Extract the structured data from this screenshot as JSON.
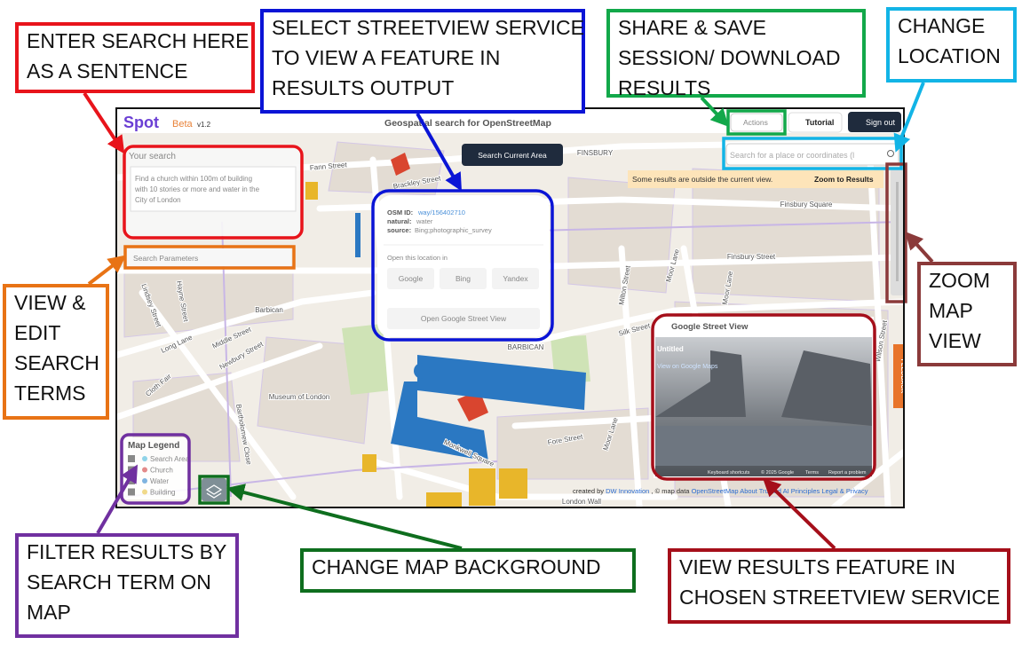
{
  "callouts": [
    {
      "lines": [
        "ENTER SEARCH HERE",
        "AS A SENTENCE"
      ]
    },
    {
      "lines": [
        "SELECT STREETVIEW SERVICE",
        "TO VIEW A FEATURE IN",
        "RESULTS OUTPUT"
      ]
    },
    {
      "lines": [
        "SHARE & SAVE",
        "SESSION/ DOWNLOAD",
        "RESULTS"
      ]
    },
    {
      "lines": [
        "CHANGE",
        "LOCATION"
      ]
    },
    {
      "lines": [
        "VIEW &",
        "EDIT",
        "SEARCH",
        "TERMS"
      ]
    },
    {
      "lines": [
        "ZOOM",
        "MAP",
        "VIEW"
      ]
    },
    {
      "lines": [
        "FILTER RESULTS BY",
        "SEARCH TERM ON",
        "MAP"
      ]
    },
    {
      "lines": [
        "CHANGE MAP BACKGROUND"
      ]
    },
    {
      "lines": [
        "VIEW RESULTS FEATURE IN",
        "CHOSEN STREETVIEW SERVICE"
      ]
    }
  ],
  "app": {
    "logo": "Spot",
    "beta": "Beta",
    "version": "v1.2",
    "title": "Geospatial search for OpenStreetMap",
    "actions": "Actions",
    "tutorial": "Tutorial",
    "sign_out": "Sign out",
    "search_current_area": "Search Current Area",
    "location_placeholder": "Search for a place or coordinates (l",
    "notice": "Some results are outside the current view.",
    "zoom_to_results": "Zoom to Results",
    "search_label": "Your search",
    "search_placeholder": [
      "Find a church within 100m of building",
      "with 10 stories or more and water in the",
      "City of London"
    ],
    "search_parameters": "Search Parameters",
    "popup": {
      "osm_id_label": "OSM ID:",
      "osm_id": "way/156402710",
      "natural_label": "natural:",
      "natural": "water",
      "source_label": "source:",
      "source": "Bing;photographic_survey",
      "open_in": "Open this location in",
      "services": [
        "Google",
        "Bing",
        "Yandex"
      ],
      "street_view_button": "Open Google Street View"
    },
    "legend": {
      "title": "Map Legend",
      "items": [
        "Search Area",
        "Church",
        "Water",
        "Building"
      ]
    },
    "street_view": {
      "title": "Google Street View",
      "place": "Untitled",
      "link": "View on Google Maps",
      "footer": [
        "Keyboard shortcuts",
        "© 2025 Google",
        "Terms",
        "Report a problem"
      ]
    },
    "footer": {
      "created_by": "created by",
      "author": "DW Innovation",
      "map_data": ", © map data",
      "osm": "OpenStreetMap",
      "about": "About Trusted AI Principles",
      "legal": "Legal & Privacy"
    },
    "feedback": "FEEDBACK"
  },
  "map_labels": [
    "Fann Street",
    "Brackley Street",
    "FINSBURY",
    "Barbican",
    "BARBICAN",
    "Silk Street",
    "Moor Lane",
    "Milton Street",
    "Moor Lane",
    "Fore Street",
    "Monkwell Square",
    "London Wall",
    "Long Lane",
    "Lindsey Street",
    "Hayne Street",
    "Middle Street",
    "Newbury Street",
    "Cloth Fair",
    "Bartholomew Close",
    "Museum of London",
    "Finsbury Square",
    "Finsbury Street",
    "Moor Lane",
    "Wilson Street"
  ]
}
